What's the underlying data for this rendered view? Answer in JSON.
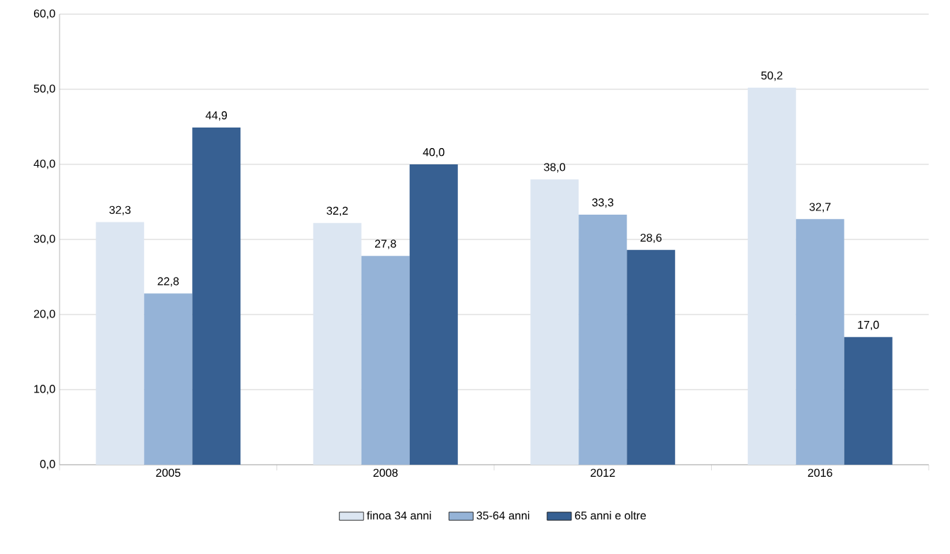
{
  "chart_data": {
    "type": "bar",
    "categories": [
      "2005",
      "2008",
      "2012",
      "2016"
    ],
    "series": [
      {
        "name": "finoa 34 anni",
        "color": "#dce6f2",
        "values": [
          32.3,
          32.2,
          38.0,
          50.2
        ],
        "value_labels": [
          "32,3",
          "32,2",
          "38,0",
          "50,2"
        ]
      },
      {
        "name": "35-64 anni",
        "color": "#95b3d7",
        "values": [
          22.8,
          27.8,
          33.3,
          32.7
        ],
        "value_labels": [
          "22,8",
          "27,8",
          "33,3",
          "32,7"
        ]
      },
      {
        "name": "65 anni e oltre",
        "color": "#376092",
        "values": [
          44.9,
          40.0,
          28.6,
          17.0
        ],
        "value_labels": [
          "44,9",
          "40,0",
          "28,6",
          "17,0"
        ]
      }
    ],
    "ylim": [
      0,
      60
    ],
    "yticks": [
      {
        "value": 0,
        "label": "0,0"
      },
      {
        "value": 10,
        "label": "10,0"
      },
      {
        "value": 20,
        "label": "20,0"
      },
      {
        "value": 30,
        "label": "30,0"
      },
      {
        "value": 40,
        "label": "40,0"
      },
      {
        "value": 50,
        "label": "50,0"
      },
      {
        "value": 60,
        "label": "60,0"
      }
    ],
    "grid": "y",
    "legend": "bottom"
  }
}
